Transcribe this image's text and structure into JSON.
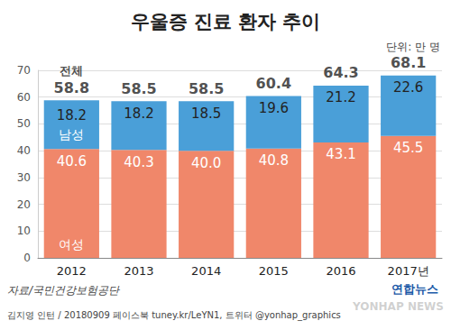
{
  "chart_data": {
    "type": "bar",
    "title": "우울증 진료 환자 추이",
    "unit": "단위: 만 명",
    "categories": [
      "2012",
      "2013",
      "2014",
      "2015",
      "2016",
      "2017년"
    ],
    "series": [
      {
        "name": "여성",
        "color": "#f0876a",
        "values": [
          40.6,
          40.3,
          40.0,
          40.8,
          43.1,
          45.5
        ],
        "value_labels": [
          "40.6",
          "40.3",
          "40.0",
          "40.8",
          "43.1",
          "45.5"
        ]
      },
      {
        "name": "남성",
        "color": "#4a9fd8",
        "values": [
          18.2,
          18.2,
          18.5,
          19.6,
          21.2,
          22.6
        ]
      }
    ],
    "totals": {
      "name": "전체",
      "values": [
        58.8,
        58.5,
        58.5,
        60.4,
        64.3,
        68.1
      ]
    },
    "ylim": [
      0,
      70
    ],
    "yticks": [
      0,
      10,
      20,
      30,
      40,
      50,
      60,
      70
    ],
    "grid": true,
    "stacked": true,
    "data_labels": true,
    "source": "자료/국민건강보험공단",
    "credit": "김지영 인턴 / 20180909 페이스북 tuney.kr/LeYN1, 트위터 @yonhap_graphics",
    "logo": "연합뉴스",
    "watermark": "YONHAP NEWS"
  }
}
